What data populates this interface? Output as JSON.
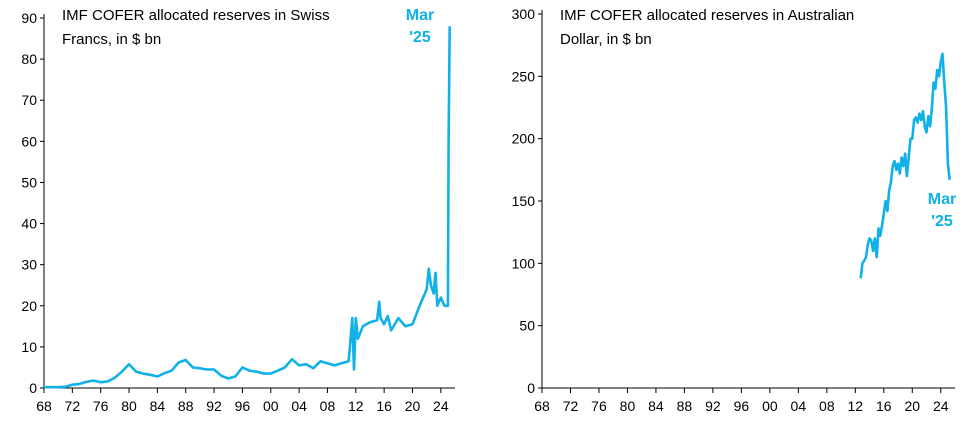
{
  "theme": {
    "line_color": "#10b0e8",
    "axis_color": "#000000"
  },
  "chart_data": [
    {
      "type": "line",
      "title_lines": [
        "IMF COFER allocated reserves in Swiss",
        "Francs, in $ bn"
      ],
      "annotation_lines": [
        "Mar",
        "'25"
      ],
      "xlabel": "",
      "ylabel": "",
      "xlim": [
        1968,
        2026
      ],
      "ylim": [
        0,
        90
      ],
      "yticks": [
        0,
        10,
        20,
        30,
        40,
        50,
        60,
        70,
        80,
        90
      ],
      "xticks": [
        1968,
        1972,
        1976,
        1980,
        1984,
        1988,
        1992,
        1996,
        2000,
        2004,
        2008,
        2012,
        2016,
        2020,
        2024
      ],
      "xtick_labels": [
        "68",
        "72",
        "76",
        "80",
        "84",
        "88",
        "92",
        "96",
        "00",
        "04",
        "08",
        "12",
        "16",
        "20",
        "24"
      ],
      "series": [
        {
          "x": [
            1968,
            1970,
            1971,
            1972,
            1973,
            1974,
            1975,
            1976,
            1977,
            1978,
            1979,
            1980,
            1981,
            1982,
            1983,
            1984,
            1985,
            1986,
            1987,
            1988,
            1989,
            1990,
            1991,
            1992,
            1993,
            1994,
            1995,
            1996,
            1997,
            1998,
            1999,
            2000,
            2001,
            2002,
            2003,
            2004,
            2005,
            2006,
            2007,
            2008,
            2009,
            2010,
            2011,
            2011.5,
            2011.75,
            2012,
            2012.3,
            2013,
            2014,
            2015,
            2015.3,
            2015.5,
            2016,
            2016.5,
            2017,
            2018,
            2019,
            2020,
            2021,
            2022,
            2022.3,
            2022.6,
            2023,
            2023.25,
            2023.5,
            2024,
            2024.5,
            2025,
            2025.1,
            2025.25
          ],
          "y": [
            0.2,
            0.2,
            0.3,
            0.8,
            1.0,
            1.5,
            1.8,
            1.4,
            1.6,
            2.5,
            4.0,
            5.8,
            4.0,
            3.5,
            3.2,
            2.8,
            3.6,
            4.2,
            6.2,
            6.8,
            5.0,
            4.8,
            4.5,
            4.5,
            3.0,
            2.3,
            2.8,
            5.0,
            4.2,
            4.0,
            3.5,
            3.5,
            4.2,
            5.0,
            7.0,
            5.5,
            5.8,
            4.8,
            6.5,
            6.0,
            5.5,
            6.0,
            6.5,
            17.0,
            4.5,
            17.0,
            12.0,
            15.0,
            16.0,
            16.5,
            21.0,
            17.0,
            15.5,
            17.5,
            14.0,
            17.0,
            15.0,
            15.5,
            20.0,
            24.0,
            29.0,
            25.0,
            23.0,
            28.0,
            20.0,
            22.0,
            20.0,
            20.0,
            60.0,
            88.0
          ]
        }
      ]
    },
    {
      "type": "line",
      "title_lines": [
        "IMF COFER allocated reserves in Australian",
        "Dollar, in $ bn"
      ],
      "annotation_lines": [
        "Mar",
        "'25"
      ],
      "xlabel": "",
      "ylabel": "",
      "xlim": [
        1968,
        2026
      ],
      "ylim": [
        0,
        300
      ],
      "yticks": [
        0,
        50,
        100,
        150,
        200,
        250,
        300
      ],
      "xticks": [
        1968,
        1972,
        1976,
        1980,
        1984,
        1988,
        1992,
        1996,
        2000,
        2004,
        2008,
        2012,
        2016,
        2020,
        2024
      ],
      "xtick_labels": [
        "68",
        "72",
        "76",
        "80",
        "84",
        "88",
        "92",
        "96",
        "00",
        "04",
        "08",
        "12",
        "16",
        "20",
        "24"
      ],
      "series": [
        {
          "x": [
            2012.75,
            2013,
            2013.25,
            2013.5,
            2013.75,
            2014,
            2014.25,
            2014.5,
            2014.75,
            2015,
            2015.25,
            2015.5,
            2015.75,
            2016,
            2016.25,
            2016.5,
            2016.75,
            2017,
            2017.25,
            2017.5,
            2017.75,
            2018,
            2018.25,
            2018.5,
            2018.75,
            2019,
            2019.25,
            2019.5,
            2019.75,
            2020,
            2020.25,
            2020.5,
            2020.75,
            2021,
            2021.25,
            2021.5,
            2021.75,
            2022,
            2022.25,
            2022.5,
            2022.75,
            2023,
            2023.25,
            2023.5,
            2023.75,
            2024,
            2024.25,
            2024.5,
            2024.75,
            2025,
            2025.25
          ],
          "y": [
            88,
            100,
            102,
            105,
            115,
            120,
            118,
            110,
            120,
            105,
            128,
            122,
            130,
            140,
            150,
            142,
            158,
            165,
            178,
            182,
            175,
            180,
            172,
            185,
            178,
            188,
            170,
            185,
            200,
            200,
            215,
            217,
            213,
            220,
            215,
            222,
            210,
            205,
            218,
            210,
            225,
            245,
            240,
            255,
            250,
            262,
            268,
            245,
            225,
            180,
            167
          ]
        }
      ]
    }
  ]
}
